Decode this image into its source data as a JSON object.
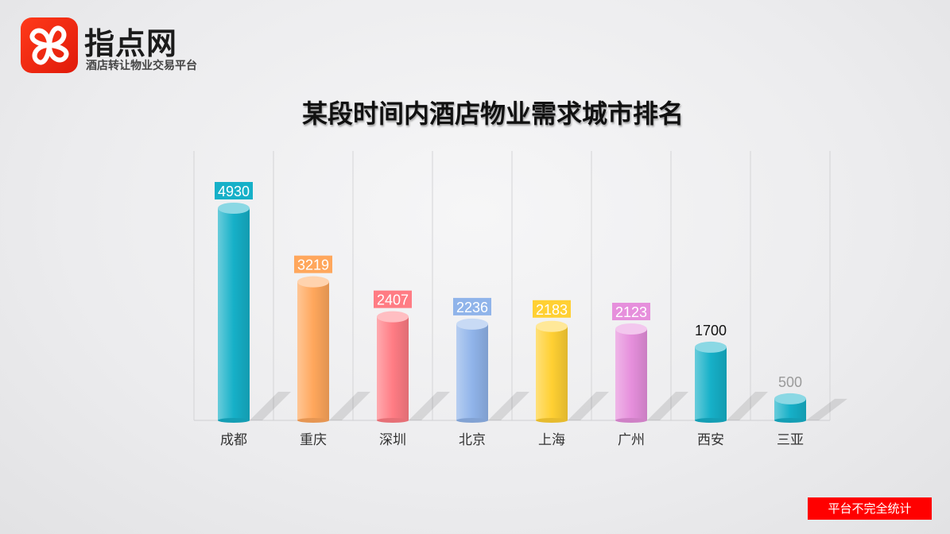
{
  "brand": {
    "name": "指点网",
    "tagline": "酒店转让物业交易平台",
    "color": "#ff2a10"
  },
  "title": "某段时间内酒店物业需求城市排名",
  "note": "平台不完全统计",
  "chart_data": {
    "type": "bar",
    "title": "某段时间内酒店物业需求城市排名",
    "categories": [
      "成都",
      "重庆",
      "深圳",
      "北京",
      "上海",
      "广州",
      "西安",
      "三亚"
    ],
    "values": [
      4930,
      3219,
      2407,
      2236,
      2183,
      2123,
      1700,
      500
    ],
    "colors": [
      "#16b0c8",
      "#ffa75c",
      "#ff7c84",
      "#90b4ea",
      "#ffd033",
      "#e68fdc",
      "#16b0c8",
      "#16b0c8"
    ],
    "label_styles": [
      "boxed",
      "boxed",
      "boxed",
      "boxed",
      "boxed",
      "boxed",
      "plain",
      "faded"
    ],
    "ylim": [
      0,
      5500
    ],
    "grid": "vertical",
    "legend": "none"
  }
}
